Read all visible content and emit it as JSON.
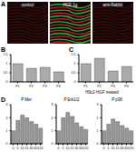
{
  "image_panel": {
    "label": "A",
    "captions": [
      "control",
      "HGF 1g",
      "anti-Rabbit"
    ]
  },
  "caption": "H9c2-HGF treated",
  "chart_data": [
    {
      "type": "bar",
      "title": "B",
      "categories": [
        "P1",
        "P2",
        "P3",
        "P4"
      ],
      "values": [
        1.0,
        0.75,
        0.8,
        0.55
      ],
      "color": "#aaaaaa",
      "ylim": [
        0,
        1.5
      ],
      "yticks": [
        0,
        0.5,
        1,
        1.5
      ]
    },
    {
      "type": "bar",
      "title": "C",
      "categories": [
        "P1",
        "P2",
        "P3",
        "P4"
      ],
      "values": [
        1.0,
        1.3,
        0.6,
        0.85
      ],
      "color": "#aaaaaa",
      "ylim": [
        0,
        1.5
      ],
      "yticks": [
        0,
        0.5,
        1,
        1.5
      ]
    },
    {
      "type": "bar",
      "title": "D",
      "subtitle": "P Met",
      "categories": [
        "0",
        "5",
        "10",
        "15",
        "30",
        "60",
        "120"
      ],
      "values": [
        1.0,
        1.8,
        2.2,
        2.0,
        1.7,
        1.5,
        1.2
      ],
      "color": "#999999",
      "ylim": [
        0,
        3
      ],
      "yticks": [
        0,
        1,
        2,
        3
      ]
    },
    {
      "type": "bar",
      "subtitle": "P Erk1/2",
      "categories": [
        "0",
        "5",
        "10",
        "15",
        "30",
        "60",
        "120"
      ],
      "values": [
        1.0,
        2.0,
        2.4,
        2.1,
        1.6,
        1.3,
        1.1
      ],
      "color": "#999999",
      "ylim": [
        0,
        3
      ],
      "yticks": [
        0,
        1,
        2,
        3
      ]
    },
    {
      "type": "bar",
      "subtitle": "P p38",
      "categories": [
        "0",
        "5",
        "10",
        "15",
        "30",
        "60",
        "120"
      ],
      "values": [
        1.0,
        1.5,
        1.9,
        1.7,
        1.4,
        1.2,
        1.0
      ],
      "color": "#999999",
      "ylim": [
        0,
        3
      ],
      "yticks": [
        0,
        1,
        2,
        3
      ]
    }
  ]
}
